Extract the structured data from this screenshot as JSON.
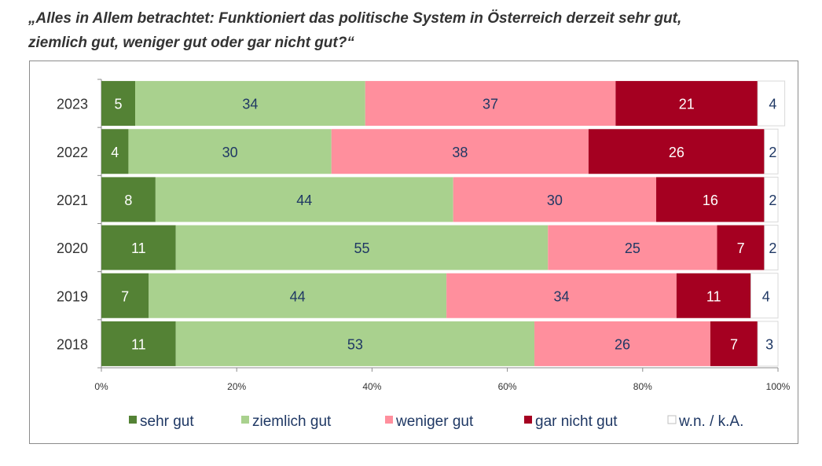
{
  "title_line1": "„Alles in Allem betrachtet: Funktioniert das politische System in Österreich derzeit sehr gut,",
  "title_line2": "ziemlich gut, weniger gut oder gar nicht gut?“",
  "chart_data": {
    "type": "bar",
    "orientation": "horizontal",
    "stacked": true,
    "categories": [
      "2023",
      "2022",
      "2021",
      "2020",
      "2019",
      "2018"
    ],
    "series": [
      {
        "name": "sehr gut",
        "color": "#548235",
        "label_color": "#ffffff",
        "values": [
          5,
          4,
          8,
          11,
          7,
          11
        ]
      },
      {
        "name": "ziemlich gut",
        "color": "#a9d18e",
        "label_color": "#1f3864",
        "values": [
          34,
          30,
          44,
          55,
          44,
          53
        ]
      },
      {
        "name": "weniger gut",
        "color": "#ff8f9d",
        "label_color": "#1f3864",
        "values": [
          37,
          38,
          30,
          25,
          34,
          26
        ]
      },
      {
        "name": "gar nicht gut",
        "color": "#a50021",
        "label_color": "#ffffff",
        "values": [
          21,
          26,
          16,
          7,
          11,
          7
        ]
      },
      {
        "name": "w.n. / k.A.",
        "color": "#ffffff",
        "label_color": "#1f3864",
        "values": [
          4,
          2,
          2,
          2,
          4,
          3
        ]
      }
    ],
    "x_ticks": [
      "0%",
      "20%",
      "40%",
      "60%",
      "80%",
      "100%"
    ],
    "xlim": [
      0,
      100
    ],
    "xlabel": "",
    "ylabel": "",
    "legend_position": "bottom",
    "grid": false
  }
}
